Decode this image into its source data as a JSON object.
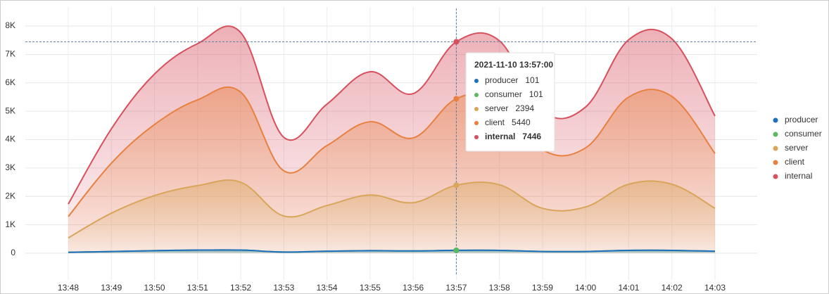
{
  "chart_data": {
    "type": "area",
    "categories": [
      "13:48",
      "13:49",
      "13:50",
      "13:51",
      "13:52",
      "13:53",
      "13:54",
      "13:55",
      "13:56",
      "13:57",
      "13:58",
      "13:59",
      "14:00",
      "14:01",
      "14:02",
      "14:03"
    ],
    "series": [
      {
        "name": "producer",
        "color": "#1f6fbf",
        "values": [
          30,
          60,
          90,
          110,
          110,
          40,
          70,
          90,
          80,
          101,
          100,
          60,
          60,
          100,
          100,
          70
        ]
      },
      {
        "name": "consumer",
        "color": "#5cb85c",
        "values": [
          30,
          60,
          90,
          110,
          110,
          40,
          70,
          90,
          80,
          101,
          100,
          60,
          60,
          100,
          100,
          70
        ]
      },
      {
        "name": "server",
        "color": "#d9a55a",
        "values": [
          540,
          1410,
          2030,
          2380,
          2500,
          1310,
          1680,
          2050,
          1780,
          2394,
          2410,
          1580,
          1630,
          2430,
          2430,
          1580
        ]
      },
      {
        "name": "client",
        "color": "#e8803f",
        "values": [
          1290,
          3170,
          4530,
          5400,
          5670,
          2900,
          3790,
          4630,
          4060,
          5440,
          5450,
          3640,
          3710,
          5500,
          5520,
          3510
        ]
      },
      {
        "name": "internal",
        "color": "#d6505e",
        "values": [
          1730,
          4380,
          6310,
          7380,
          7770,
          4080,
          5250,
          6390,
          5620,
          7446,
          7480,
          5000,
          5150,
          7520,
          7550,
          4830
        ]
      }
    ],
    "ylim": [
      0,
      8000
    ],
    "yticks": [
      0,
      {
        "value": 1000,
        "label": "1K"
      },
      {
        "value": 2000,
        "label": "2K"
      },
      {
        "value": 3000,
        "label": "3K"
      },
      {
        "value": 4000,
        "label": "4K"
      },
      {
        "value": 5000,
        "label": "5K"
      },
      {
        "value": 6000,
        "label": "6K"
      },
      {
        "value": 7000,
        "label": "7K"
      },
      {
        "value": 8000,
        "label": "8K"
      }
    ],
    "grid": true,
    "legend": "right",
    "tooltip_title": "2021-11-10 13:57:00"
  }
}
